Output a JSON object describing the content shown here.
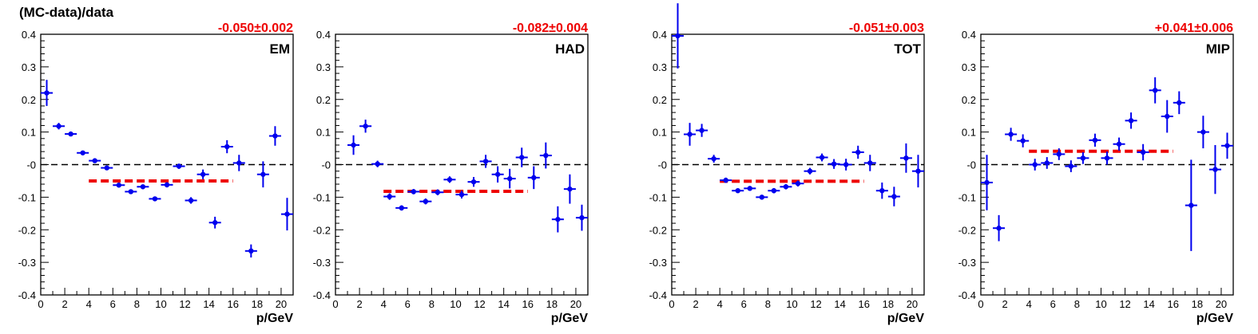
{
  "figure": {
    "ylabel": "(MC-data)/data"
  },
  "colors": {
    "points": "#0000ee",
    "fit": "#ee0000",
    "zero_line": "#000000",
    "fit_text": "#ee0000"
  },
  "chart_data": [
    {
      "type": "scatter",
      "panel_label": "EM",
      "fit_text": "-0.050±0.002",
      "xlabel": "p/GeV",
      "ylabel": "(MC-data)/data",
      "xlim": [
        0,
        21
      ],
      "ylim": [
        -0.4,
        0.4
      ],
      "xticks": [
        0,
        2,
        4,
        6,
        8,
        10,
        12,
        14,
        16,
        18,
        20
      ],
      "yticks": [
        "-0.4",
        "-0.3",
        "-0.2",
        "-0.1",
        "-0",
        "0.1",
        "0.2",
        "0.3",
        "0.4"
      ],
      "zero_line": true,
      "fit": {
        "value": -0.05,
        "x_range": [
          4,
          16
        ]
      },
      "points": [
        {
          "x": 0.5,
          "y": 0.22,
          "err": 0.04
        },
        {
          "x": 1.5,
          "y": 0.118,
          "err": 0.01
        },
        {
          "x": 2.5,
          "y": 0.094,
          "err": 0.006
        },
        {
          "x": 3.5,
          "y": 0.036,
          "err": 0.005
        },
        {
          "x": 4.5,
          "y": 0.012,
          "err": 0.005
        },
        {
          "x": 5.5,
          "y": -0.01,
          "err": 0.005
        },
        {
          "x": 6.5,
          "y": -0.063,
          "err": 0.006
        },
        {
          "x": 7.5,
          "y": -0.083,
          "err": 0.006
        },
        {
          "x": 8.5,
          "y": -0.068,
          "err": 0.007
        },
        {
          "x": 9.5,
          "y": -0.105,
          "err": 0.007
        },
        {
          "x": 10.5,
          "y": -0.062,
          "err": 0.008
        },
        {
          "x": 11.5,
          "y": -0.005,
          "err": 0.008
        },
        {
          "x": 12.5,
          "y": -0.11,
          "err": 0.01
        },
        {
          "x": 13.5,
          "y": -0.03,
          "err": 0.015
        },
        {
          "x": 14.5,
          "y": -0.178,
          "err": 0.018
        },
        {
          "x": 15.5,
          "y": 0.055,
          "err": 0.02
        },
        {
          "x": 16.5,
          "y": 0.005,
          "err": 0.025
        },
        {
          "x": 17.5,
          "y": -0.265,
          "err": 0.02
        },
        {
          "x": 18.5,
          "y": -0.03,
          "err": 0.04
        },
        {
          "x": 19.5,
          "y": 0.088,
          "err": 0.03
        },
        {
          "x": 20.5,
          "y": -0.152,
          "err": 0.05
        }
      ]
    },
    {
      "type": "scatter",
      "panel_label": "HAD",
      "fit_text": "-0.082±0.004",
      "xlabel": "p/GeV",
      "ylabel": "",
      "xlim": [
        0,
        21
      ],
      "ylim": [
        -0.4,
        0.4
      ],
      "xticks": [
        0,
        2,
        4,
        6,
        8,
        10,
        12,
        14,
        16,
        18,
        20
      ],
      "yticks": [
        "-0.4",
        "-0.3",
        "-0.2",
        "-0.1",
        "-0",
        "0.1",
        "0.2",
        "0.3",
        "0.4"
      ],
      "zero_line": true,
      "fit": {
        "value": -0.082,
        "x_range": [
          4,
          16
        ]
      },
      "points": [
        {
          "x": 1.5,
          "y": 0.06,
          "err": 0.03
        },
        {
          "x": 2.5,
          "y": 0.118,
          "err": 0.02
        },
        {
          "x": 3.5,
          "y": 0.002,
          "err": 0.01
        },
        {
          "x": 4.5,
          "y": -0.098,
          "err": 0.01
        },
        {
          "x": 5.5,
          "y": -0.133,
          "err": 0.008
        },
        {
          "x": 6.5,
          "y": -0.083,
          "err": 0.008
        },
        {
          "x": 7.5,
          "y": -0.113,
          "err": 0.009
        },
        {
          "x": 8.5,
          "y": -0.085,
          "err": 0.009
        },
        {
          "x": 9.5,
          "y": -0.046,
          "err": 0.01
        },
        {
          "x": 10.5,
          "y": -0.092,
          "err": 0.012
        },
        {
          "x": 11.5,
          "y": -0.053,
          "err": 0.015
        },
        {
          "x": 12.5,
          "y": 0.01,
          "err": 0.02
        },
        {
          "x": 13.5,
          "y": -0.03,
          "err": 0.025
        },
        {
          "x": 14.5,
          "y": -0.043,
          "err": 0.03
        },
        {
          "x": 15.5,
          "y": 0.022,
          "err": 0.03
        },
        {
          "x": 16.5,
          "y": -0.04,
          "err": 0.035
        },
        {
          "x": 17.5,
          "y": 0.028,
          "err": 0.04
        },
        {
          "x": 18.5,
          "y": -0.168,
          "err": 0.04
        },
        {
          "x": 19.5,
          "y": -0.075,
          "err": 0.045
        },
        {
          "x": 20.5,
          "y": -0.163,
          "err": 0.04
        }
      ]
    },
    {
      "type": "scatter",
      "panel_label": "TOT",
      "fit_text": "-0.051±0.003",
      "xlabel": "p/GeV",
      "ylabel": "",
      "xlim": [
        0,
        21
      ],
      "ylim": [
        -0.4,
        0.4
      ],
      "xticks": [
        0,
        2,
        4,
        6,
        8,
        10,
        12,
        14,
        16,
        18,
        20
      ],
      "yticks": [
        "-0.4",
        "-0.3",
        "-0.2",
        "-0.1",
        "-0",
        "0.1",
        "0.2",
        "0.3",
        "0.4"
      ],
      "zero_line": true,
      "fit": {
        "value": -0.051,
        "x_range": [
          4,
          16
        ]
      },
      "points": [
        {
          "x": 0.5,
          "y": 0.395,
          "err": 0.1
        },
        {
          "x": 1.5,
          "y": 0.093,
          "err": 0.035
        },
        {
          "x": 2.5,
          "y": 0.105,
          "err": 0.02
        },
        {
          "x": 3.5,
          "y": 0.018,
          "err": 0.012
        },
        {
          "x": 4.5,
          "y": -0.048,
          "err": 0.008
        },
        {
          "x": 5.5,
          "y": -0.08,
          "err": 0.007
        },
        {
          "x": 6.5,
          "y": -0.073,
          "err": 0.007
        },
        {
          "x": 7.5,
          "y": -0.1,
          "err": 0.007
        },
        {
          "x": 8.5,
          "y": -0.08,
          "err": 0.008
        },
        {
          "x": 9.5,
          "y": -0.068,
          "err": 0.008
        },
        {
          "x": 10.5,
          "y": -0.058,
          "err": 0.009
        },
        {
          "x": 11.5,
          "y": -0.02,
          "err": 0.01
        },
        {
          "x": 12.5,
          "y": 0.022,
          "err": 0.012
        },
        {
          "x": 13.5,
          "y": 0.002,
          "err": 0.015
        },
        {
          "x": 14.5,
          "y": 0.0,
          "err": 0.018
        },
        {
          "x": 15.5,
          "y": 0.038,
          "err": 0.02
        },
        {
          "x": 16.5,
          "y": 0.005,
          "err": 0.025
        },
        {
          "x": 17.5,
          "y": -0.08,
          "err": 0.025
        },
        {
          "x": 18.5,
          "y": -0.098,
          "err": 0.03
        },
        {
          "x": 19.5,
          "y": 0.02,
          "err": 0.045
        },
        {
          "x": 20.5,
          "y": -0.02,
          "err": 0.05
        }
      ]
    },
    {
      "type": "scatter",
      "panel_label": "MIP",
      "fit_text": "+0.041±0.006",
      "xlabel": "p/GeV",
      "ylabel": "",
      "xlim": [
        0,
        21
      ],
      "ylim": [
        -0.4,
        0.4
      ],
      "xticks": [
        0,
        2,
        4,
        6,
        8,
        10,
        12,
        14,
        16,
        18,
        20
      ],
      "yticks": [
        "-0.4",
        "-0.3",
        "-0.2",
        "-0.1",
        "-0",
        "0.1",
        "0.2",
        "0.3",
        "0.4"
      ],
      "zero_line": true,
      "fit": {
        "value": 0.041,
        "x_range": [
          4,
          16
        ]
      },
      "points": [
        {
          "x": 0.5,
          "y": -0.055,
          "err": 0.085
        },
        {
          "x": 1.5,
          "y": -0.195,
          "err": 0.04
        },
        {
          "x": 2.5,
          "y": 0.093,
          "err": 0.02
        },
        {
          "x": 3.5,
          "y": 0.073,
          "err": 0.02
        },
        {
          "x": 4.5,
          "y": 0.0,
          "err": 0.018
        },
        {
          "x": 5.5,
          "y": 0.005,
          "err": 0.018
        },
        {
          "x": 6.5,
          "y": 0.032,
          "err": 0.018
        },
        {
          "x": 7.5,
          "y": -0.005,
          "err": 0.018
        },
        {
          "x": 8.5,
          "y": 0.02,
          "err": 0.018
        },
        {
          "x": 9.5,
          "y": 0.075,
          "err": 0.02
        },
        {
          "x": 10.5,
          "y": 0.02,
          "err": 0.02
        },
        {
          "x": 11.5,
          "y": 0.063,
          "err": 0.02
        },
        {
          "x": 12.5,
          "y": 0.135,
          "err": 0.025
        },
        {
          "x": 13.5,
          "y": 0.038,
          "err": 0.025
        },
        {
          "x": 14.5,
          "y": 0.228,
          "err": 0.04
        },
        {
          "x": 15.5,
          "y": 0.148,
          "err": 0.05
        },
        {
          "x": 16.5,
          "y": 0.19,
          "err": 0.035
        },
        {
          "x": 17.5,
          "y": -0.125,
          "err": 0.14
        },
        {
          "x": 18.5,
          "y": 0.1,
          "err": 0.05
        },
        {
          "x": 19.5,
          "y": -0.015,
          "err": 0.075
        },
        {
          "x": 20.5,
          "y": 0.058,
          "err": 0.04
        }
      ]
    }
  ]
}
